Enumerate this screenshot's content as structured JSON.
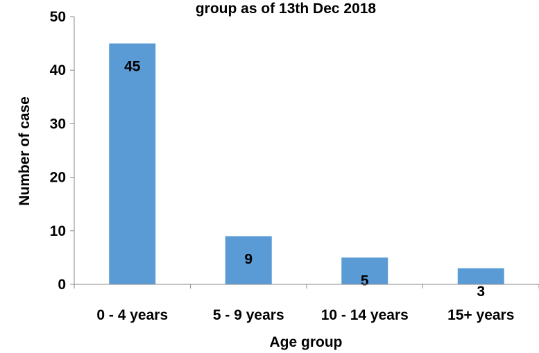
{
  "chart_data": {
    "type": "bar",
    "title": "group as of 13th Dec 2018",
    "xlabel": "Age group",
    "ylabel": "Number of case",
    "categories": [
      "0 - 4 years",
      "5 - 9 years",
      "10 - 14 years",
      "15+ years"
    ],
    "values": [
      45,
      9,
      5,
      3
    ],
    "ylim": [
      0,
      50
    ],
    "yticks": [
      0,
      10,
      20,
      30,
      40,
      50
    ],
    "grid": false,
    "bar_color": "#5b9bd5",
    "data_labels": true
  }
}
